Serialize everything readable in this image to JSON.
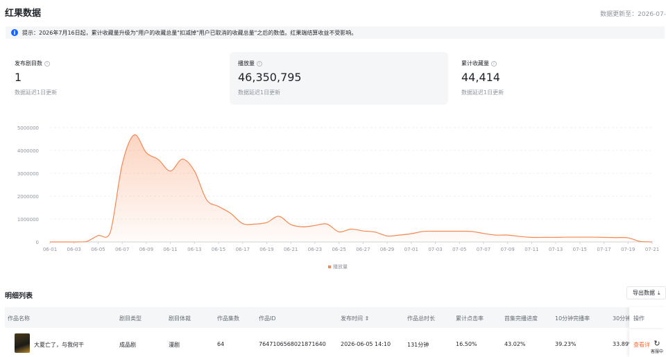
{
  "header": {
    "title": "红果数据",
    "updated": "数据更新至：2026-07-"
  },
  "notice": {
    "icon": "info-icon",
    "text": "提示：2026年7月16日起，累计收藏量升级为\"用户的收藏总量\"扣减掉\"用户已取消的收藏总量\"之后的数值。红果端结算收益不受影响。"
  },
  "stats": [
    {
      "label": "发布剧目数",
      "value": "1",
      "sub": "数据延迟1日更新"
    },
    {
      "label": "播放量",
      "value": "46,350,795",
      "sub": "数据延迟1日更新"
    },
    {
      "label": "累计收藏量",
      "value": "44,414",
      "sub": "数据延迟1日更新"
    }
  ],
  "chart_data": {
    "type": "area",
    "series": [
      {
        "name": "播放量",
        "x": [
          "06-01",
          "06-02",
          "06-03",
          "06-04",
          "06-05",
          "06-06",
          "06-07",
          "06-08",
          "06-09",
          "06-10",
          "06-11",
          "06-12",
          "06-13",
          "06-14",
          "06-15",
          "06-16",
          "06-17",
          "06-18",
          "06-19",
          "06-20",
          "06-21",
          "06-22",
          "06-23",
          "06-24",
          "06-25",
          "06-26",
          "06-27",
          "06-28",
          "06-29",
          "06-30",
          "07-01",
          "07-02",
          "07-03",
          "07-04",
          "07-05",
          "07-06",
          "07-07",
          "07-08",
          "07-09",
          "07-10",
          "07-11",
          "07-12",
          "07-13",
          "07-14",
          "07-15",
          "07-16",
          "07-17",
          "07-18",
          "07-19",
          "07-20",
          "07-21"
        ],
        "values": [
          0,
          0,
          0,
          10000,
          280000,
          400000,
          3400000,
          4680000,
          3900000,
          3600000,
          3100000,
          3620000,
          3100000,
          1850000,
          1550000,
          1250000,
          800000,
          780000,
          850000,
          1120000,
          760000,
          660000,
          720000,
          780000,
          440000,
          560000,
          480000,
          430000,
          260000,
          300000,
          360000,
          460000,
          470000,
          470000,
          470000,
          460000,
          370000,
          300000,
          300000,
          240000,
          200000,
          200000,
          200000,
          210000,
          210000,
          210000,
          200000,
          190000,
          180000,
          20000,
          0
        ]
      }
    ],
    "x_ticks": [
      "06-01",
      "06-03",
      "06-05",
      "06-07",
      "06-09",
      "06-11",
      "06-13",
      "06-15",
      "06-17",
      "06-19",
      "06-21",
      "06-23",
      "06-25",
      "06-27",
      "06-29",
      "07-01",
      "07-03",
      "07-05",
      "07-07",
      "07-09",
      "07-11",
      "07-13",
      "07-15",
      "07-17",
      "07-19",
      "07-21"
    ],
    "y_ticks": [
      "0",
      "1000000",
      "2000000",
      "3000000",
      "4000000",
      "5000000"
    ],
    "ylim": [
      0,
      5000000
    ],
    "color": "#f6864f",
    "legend": "bottom-center"
  },
  "list": {
    "title": "明细列表",
    "export_label": "导出数据",
    "export_icon": "download-icon",
    "columns": [
      "作品名称",
      "剧目类型",
      "剧目体裁",
      "作品集数",
      "作品ID",
      "发布时间 ⇕",
      "作品总时长",
      "累计点击率",
      "首集完播进度",
      "10分钟完播率",
      "30分钟",
      "操作"
    ],
    "rows": [
      {
        "name": "大夏亡了，与我何干",
        "type": "成品剧",
        "genre": "漫剧",
        "episodes": "64",
        "id": "7647106568021871640",
        "published": "2026-06-05 14:10",
        "duration": "131分钟",
        "ctr": "16.50%",
        "first_ep": "43.02%",
        "ten_min": "39.23%",
        "thirty_min": "33.89%",
        "action": "查看详"
      }
    ]
  },
  "service": {
    "label": "客服中",
    "icon": "headset-icon"
  }
}
